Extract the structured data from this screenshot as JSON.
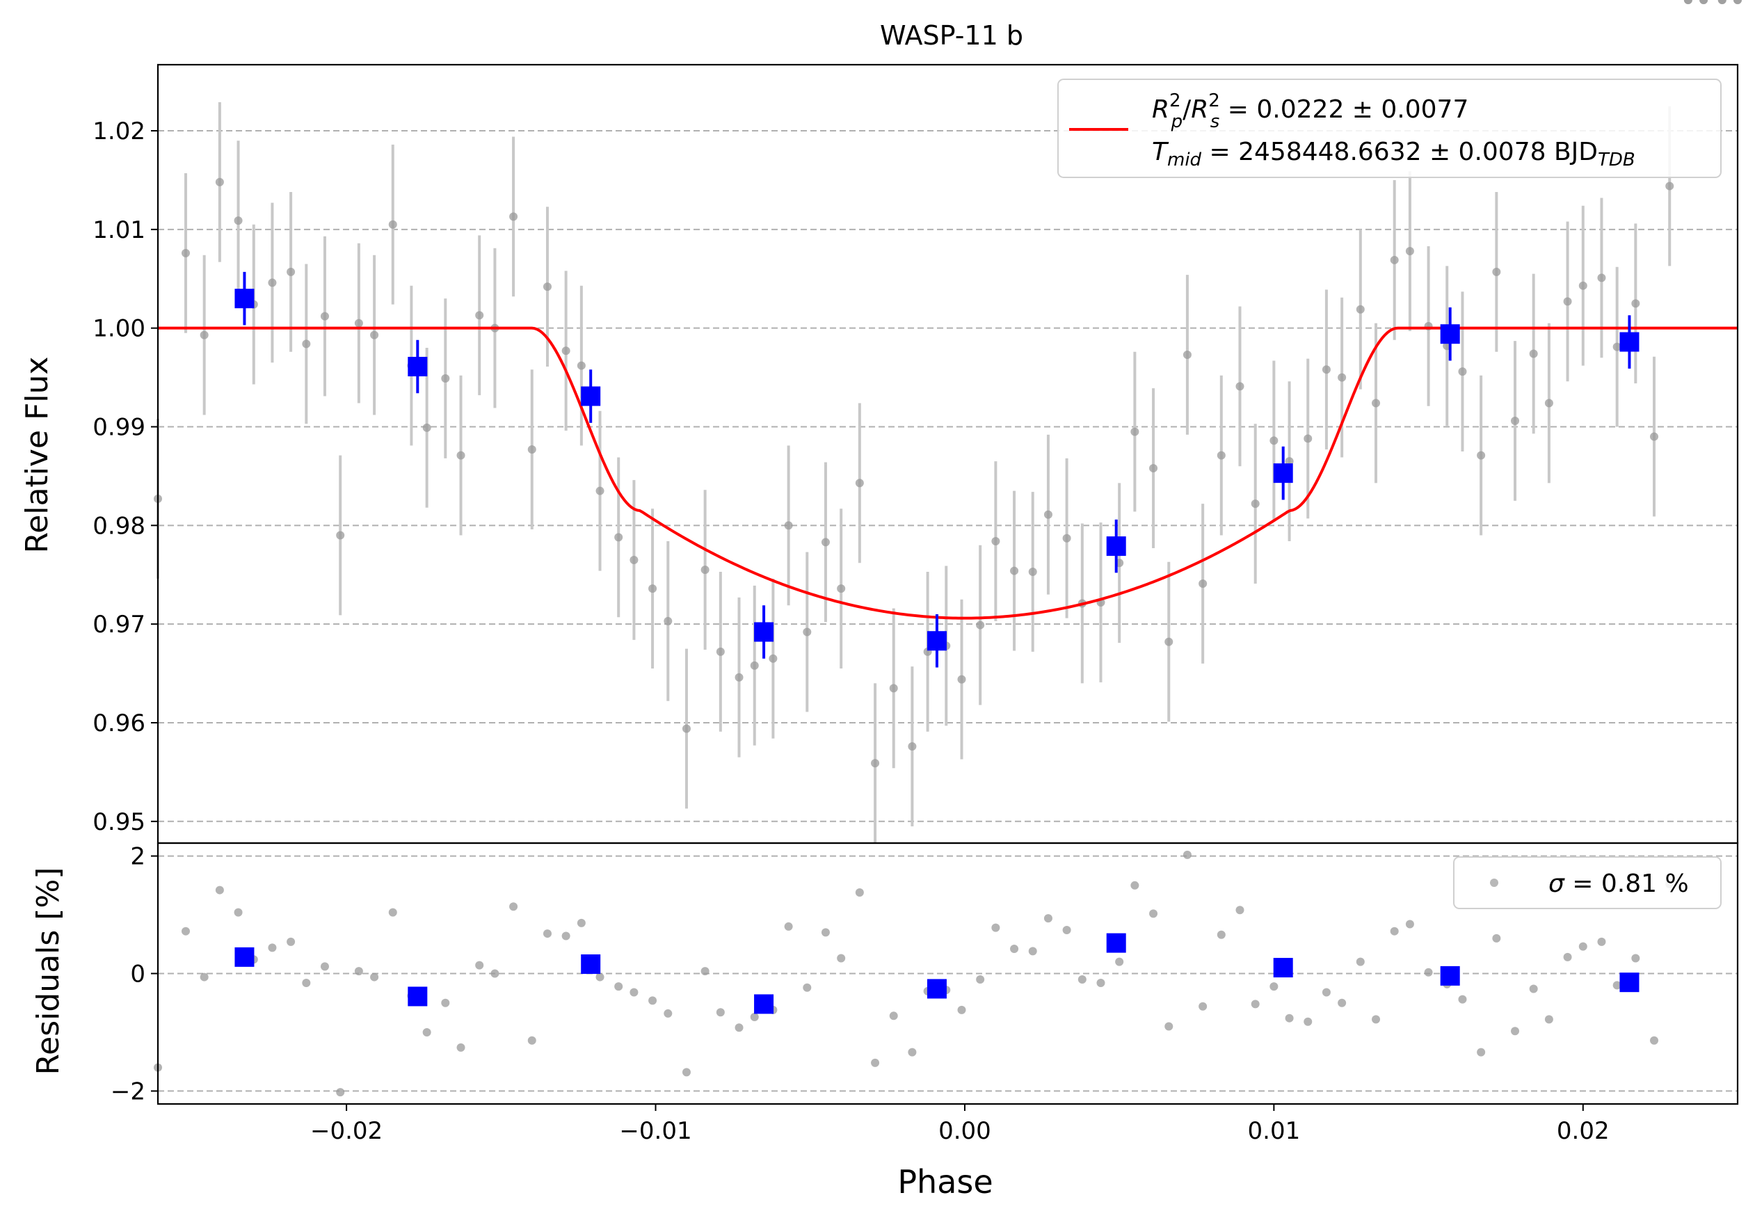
{
  "title": "WASP-11 b",
  "top_panel": {
    "ylabel": "Relative Flux",
    "yticks": [
      0.95,
      0.96,
      0.97,
      0.98,
      0.99,
      1.0,
      1.01,
      1.02
    ],
    "ytick_labels": [
      "0.95",
      "0.96",
      "0.97",
      "0.98",
      "0.99",
      "1.00",
      "1.01",
      "1.02"
    ],
    "legend": {
      "line_color": "#ff0000",
      "line1": {
        "sym_main": "R",
        "sub1": "p",
        "sup1": "2",
        "sep": "/",
        "sym_main2": "R",
        "sub2": "s",
        "sup2": "2",
        "text": " = 0.0222 ± 0.0077"
      },
      "line2": {
        "sym_main": "T",
        "sub": "mid",
        "text": " = 2458448.6632 ± 0.0078 BJD",
        "unit_sub": "TDB"
      }
    }
  },
  "bottom_panel": {
    "ylabel": "Residuals [%]",
    "yticks": [
      -2,
      0,
      2
    ],
    "ytick_labels": [
      "−2",
      "0",
      "2"
    ],
    "legend": {
      "sigma_symbol": "σ",
      "text": " = 0.81 %"
    }
  },
  "xlabel": "Phase",
  "xticks": [
    -0.02,
    -0.01,
    0.0,
    0.01,
    0.02
  ],
  "xtick_labels": [
    "−0.02",
    "−0.01",
    "0.00",
    "0.01",
    "0.02"
  ],
  "colors": {
    "raw": "#9a9a9a",
    "errorbar": "#c8c8c8",
    "binned": "#0000ff",
    "model": "#ff0000",
    "grid": "#b0b0b0"
  },
  "chart_data": {
    "type": "scatter",
    "xlim": [
      -0.0261,
      0.025
    ],
    "flux_ylim": [
      0.9478,
      1.0267
    ],
    "resid_ylim": [
      -2.22,
      2.22
    ],
    "model": {
      "name": "transit model",
      "baseline": 1.0,
      "t1": -0.014,
      "t2": -0.0105,
      "t3": 0.0105,
      "t4": 0.014,
      "min_flux": 0.9706,
      "flux_at_t2": 0.9815
    },
    "raw": {
      "x": [
        -0.0261,
        -0.0252,
        -0.0246,
        -0.0241,
        -0.0235,
        -0.023,
        -0.0224,
        -0.0218,
        -0.0213,
        -0.0207,
        -0.0202,
        -0.0196,
        -0.0191,
        -0.0185,
        -0.0179,
        -0.0174,
        -0.0168,
        -0.0163,
        -0.0157,
        -0.0152,
        -0.0146,
        -0.014,
        -0.0135,
        -0.0129,
        -0.0124,
        -0.0118,
        -0.0112,
        -0.0107,
        -0.0101,
        -0.0096,
        -0.009,
        -0.0084,
        -0.0079,
        -0.0073,
        -0.0068,
        -0.0062,
        -0.0057,
        -0.0051,
        -0.0045,
        -0.004,
        -0.0034,
        -0.0029,
        -0.0023,
        -0.0017,
        -0.0012,
        -0.0006,
        -0.0001,
        0.0005,
        0.001,
        0.0016,
        0.0022,
        0.0027,
        0.0033,
        0.0038,
        0.0044,
        0.005,
        0.0055,
        0.0061,
        0.0066,
        0.0072,
        0.0077,
        0.0083,
        0.0089,
        0.0094,
        0.01,
        0.0105,
        0.0111,
        0.0117,
        0.0122,
        0.0128,
        0.0133,
        0.0139,
        0.0144,
        0.015,
        0.0156,
        0.0161,
        0.0167,
        0.0172,
        0.0178,
        0.0184,
        0.0189,
        0.0195,
        0.02,
        0.0206,
        0.0211,
        0.0217,
        0.0223,
        0.0228,
        0.0234,
        0.0239,
        0.0245,
        0.025
      ],
      "flux": [
        0.9827,
        1.0076,
        0.9993,
        1.0148,
        1.0109,
        1.0024,
        1.0046,
        1.0057,
        0.9984,
        1.0012,
        0.979,
        1.0005,
        0.9993,
        1.0105,
        0.9962,
        0.9899,
        0.9949,
        0.9871,
        1.0013,
        1.0,
        1.0113,
        0.9877,
        1.0042,
        0.9977,
        0.9962,
        0.9835,
        0.9788,
        0.9765,
        0.9736,
        0.9703,
        0.9594,
        0.9755,
        0.9672,
        0.9646,
        0.9658,
        0.9665,
        0.98,
        0.9692,
        0.9783,
        0.9736,
        0.9843,
        0.9559,
        0.9635,
        0.9576,
        0.9672,
        0.9678,
        0.9644,
        0.9699,
        0.9784,
        0.9754,
        0.9753,
        0.9811,
        0.9787,
        0.9721,
        0.9722,
        0.9762,
        0.9895,
        0.9858,
        0.9682,
        0.9973,
        0.9741,
        0.9871,
        0.9941,
        0.9822,
        0.9886,
        0.9865,
        0.9888,
        0.9958,
        0.995,
        1.0019,
        0.9924,
        1.0069,
        1.0078,
        1.0002,
        0.9982,
        0.9956,
        0.9871,
        1.0057,
        0.9906,
        0.9974,
        0.9924,
        1.0027,
        1.0043,
        1.0051,
        0.9981,
        1.0025,
        0.989,
        1.0144
      ],
      "resid": [
        -1.6,
        0.72,
        -0.06,
        1.42,
        1.04,
        0.24,
        0.44,
        0.54,
        -0.16,
        0.12,
        -2.02,
        0.04,
        -0.06,
        1.04,
        -0.38,
        -1.0,
        -0.5,
        -1.26,
        0.14,
        0.0,
        1.14,
        -1.14,
        0.68,
        0.64,
        0.86,
        -0.06,
        -0.22,
        -0.32,
        -0.46,
        -0.68,
        -1.68,
        0.04,
        -0.66,
        -0.92,
        -0.74,
        -0.62,
        0.8,
        -0.24,
        0.7,
        0.26,
        1.38,
        -1.52,
        -0.72,
        -1.34,
        -0.3,
        -0.28,
        -0.62,
        -0.1,
        0.78,
        0.42,
        0.38,
        0.94,
        0.74,
        -0.1,
        -0.16,
        0.2,
        1.5,
        1.02,
        -0.9,
        2.02,
        -0.56,
        0.66,
        1.08,
        -0.52,
        -0.22,
        -0.76,
        -0.82,
        -0.32,
        -0.5,
        0.2,
        -0.78,
        0.72,
        0.84,
        0.02,
        -0.18,
        -0.44,
        -1.34,
        0.6,
        -0.98,
        -0.26,
        -0.78,
        0.28,
        0.46,
        0.54,
        -0.2,
        0.26,
        -1.14,
        1.52
      ],
      "err": 0.0081
    },
    "binned": {
      "x": [
        -0.0233,
        -0.0177,
        -0.0121,
        -0.0065,
        -0.0009,
        0.0049,
        0.0103,
        0.0157,
        0.0215
      ],
      "flux": [
        1.003,
        0.9961,
        0.9931,
        0.9692,
        0.9683,
        0.9779,
        0.9853,
        0.9994,
        0.9986
      ],
      "resid": [
        0.28,
        -0.39,
        0.16,
        -0.52,
        -0.26,
        0.52,
        0.1,
        -0.04,
        -0.15
      ],
      "err": 0.0027
    }
  }
}
